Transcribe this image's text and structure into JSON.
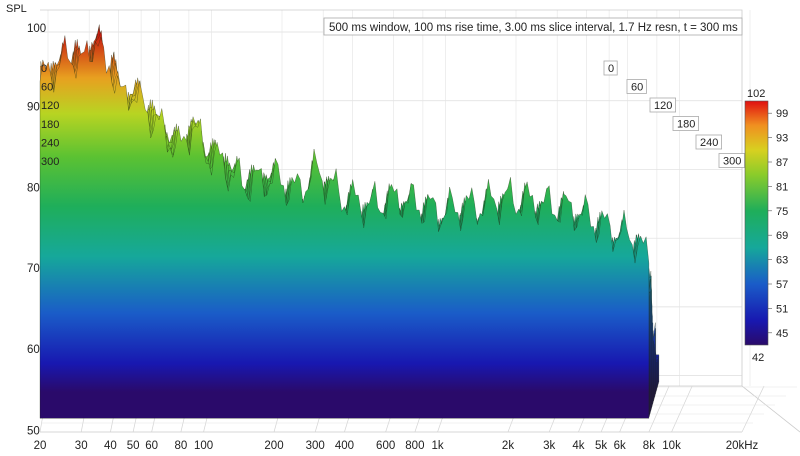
{
  "chart_data": {
    "type": "waterfall",
    "title": "500 ms window, 100 ms rise time, 3.00 ms slice interval, 1.7 Hz resn, t = 300 ms",
    "ylabel": "SPL",
    "x_unit": "kHz",
    "x_scale": "log",
    "xlim_hz": [
      20,
      20000
    ],
    "ylim_db": [
      45,
      103
    ],
    "x_ticks": [
      {
        "hz": 20,
        "label": "20"
      },
      {
        "hz": 30,
        "label": "30"
      },
      {
        "hz": 40,
        "label": "40"
      },
      {
        "hz": 50,
        "label": "50"
      },
      {
        "hz": 60,
        "label": "60"
      },
      {
        "hz": 80,
        "label": "80"
      },
      {
        "hz": 100,
        "label": "100"
      },
      {
        "hz": 200,
        "label": "200"
      },
      {
        "hz": 300,
        "label": "300"
      },
      {
        "hz": 400,
        "label": "400"
      },
      {
        "hz": 600,
        "label": "600"
      },
      {
        "hz": 800,
        "label": "800"
      },
      {
        "hz": 1000,
        "label": "1k"
      },
      {
        "hz": 2000,
        "label": "2k"
      },
      {
        "hz": 3000,
        "label": "3k"
      },
      {
        "hz": 4000,
        "label": "4k"
      },
      {
        "hz": 5000,
        "label": "5k"
      },
      {
        "hz": 6000,
        "label": "6k"
      },
      {
        "hz": 8000,
        "label": "8k"
      },
      {
        "hz": 10000,
        "label": "10k"
      },
      {
        "hz": 20000,
        "label": "20kHz"
      }
    ],
    "y_ticks": [
      50,
      60,
      70,
      80,
      90,
      100
    ],
    "time_ticks_ms": [
      0,
      60,
      120,
      180,
      240,
      300
    ],
    "colorbar": {
      "min": 42,
      "max": 102,
      "ticks": [
        45,
        51,
        57,
        63,
        69,
        75,
        81,
        87,
        93,
        99
      ]
    },
    "front_slice_spl": {
      "hz": [
        20,
        25,
        28,
        30,
        33,
        35,
        38,
        40,
        45,
        50,
        55,
        60,
        70,
        80,
        90,
        100,
        120,
        150,
        200,
        250,
        300,
        400,
        500,
        700,
        1000,
        1500,
        2000,
        3000,
        4000,
        5000,
        6000,
        7000,
        8000
      ],
      "db": [
        96,
        99,
        100,
        98,
        101,
        103,
        97,
        99,
        93,
        95,
        92,
        91,
        88,
        86,
        90,
        86,
        84,
        81,
        82,
        80,
        83,
        79,
        78,
        79,
        77,
        78,
        79,
        78,
        77,
        75,
        74,
        73,
        70
      ]
    },
    "floor_spl": 53,
    "grid": true
  }
}
